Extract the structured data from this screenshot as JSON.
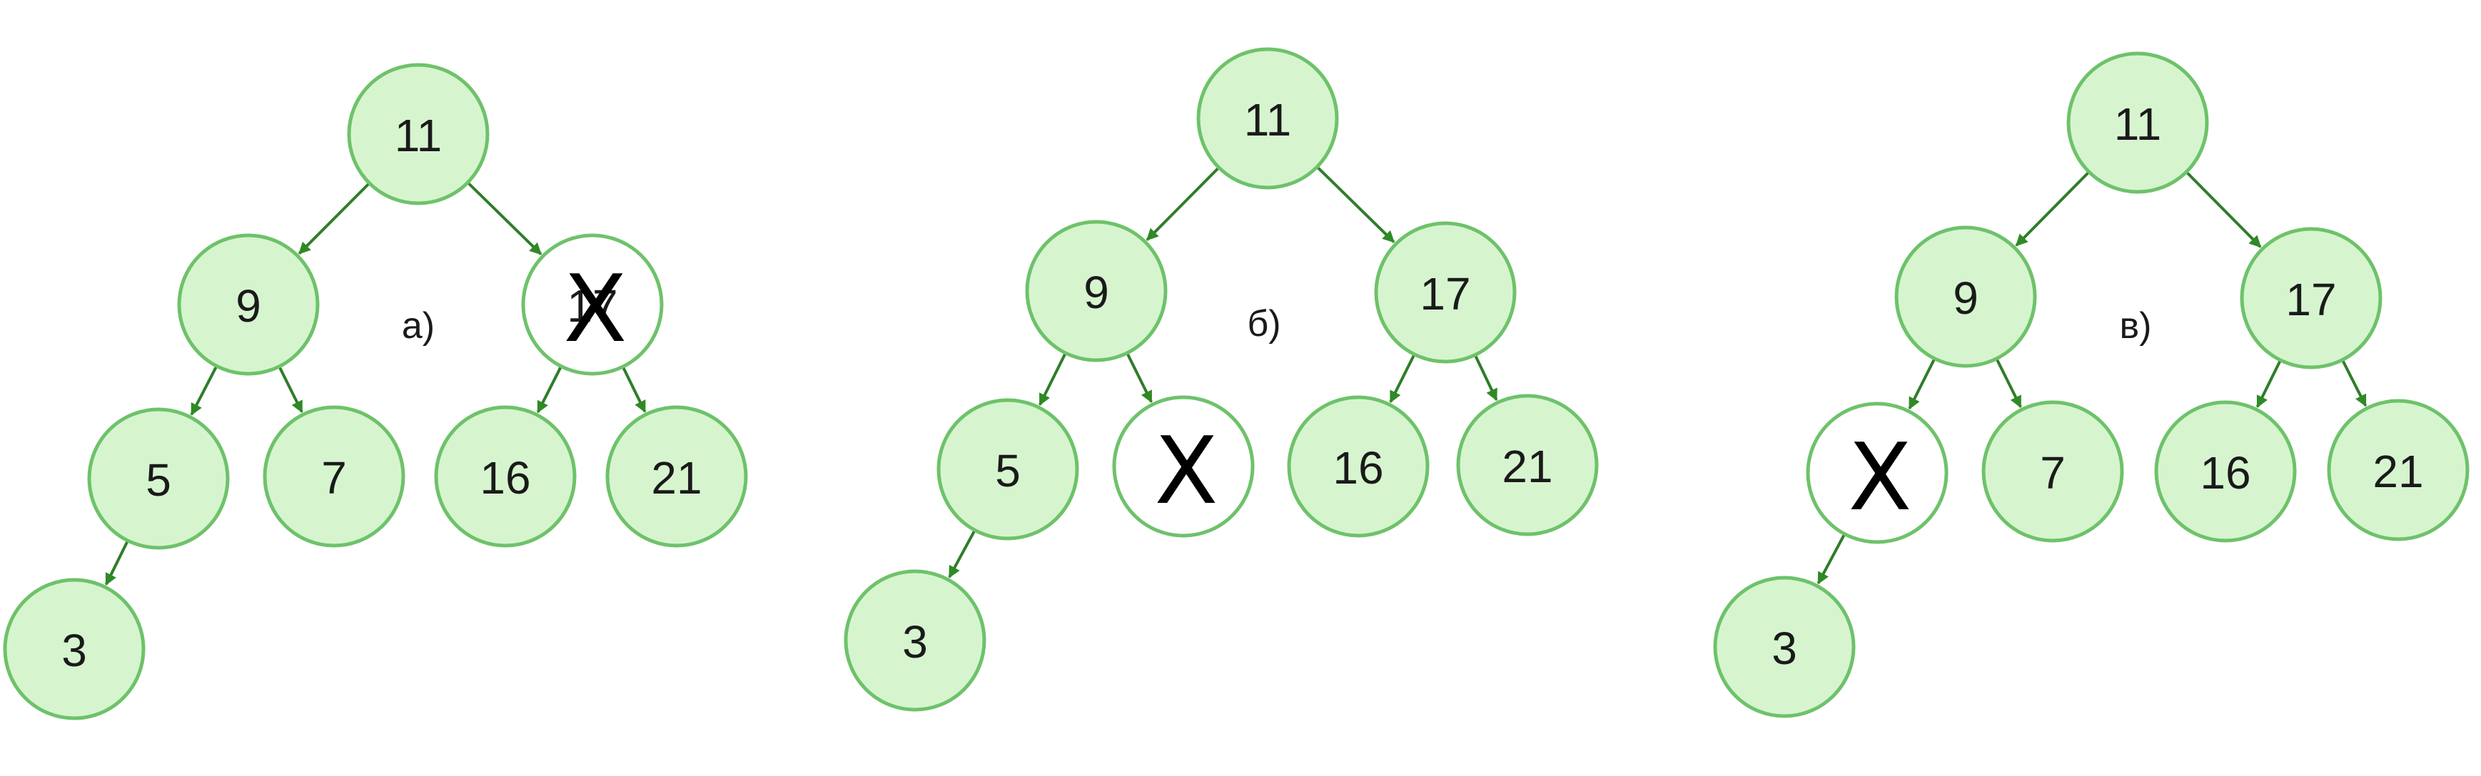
{
  "panels": [
    {
      "label": "а)",
      "removed_mark": "X",
      "nodes": [
        {
          "id": "n11",
          "value": "11",
          "removed": false
        },
        {
          "id": "n9",
          "value": "9",
          "removed": false
        },
        {
          "id": "n17",
          "value": "17",
          "removed": true
        },
        {
          "id": "n5",
          "value": "5",
          "removed": false
        },
        {
          "id": "n7",
          "value": "7",
          "removed": false
        },
        {
          "id": "n16",
          "value": "16",
          "removed": false
        },
        {
          "id": "n21",
          "value": "21",
          "removed": false
        },
        {
          "id": "n3",
          "value": "3",
          "removed": false
        }
      ],
      "edges": [
        [
          "n11",
          "n9"
        ],
        [
          "n11",
          "n17"
        ],
        [
          "n9",
          "n5"
        ],
        [
          "n9",
          "n7"
        ],
        [
          "n17",
          "n16"
        ],
        [
          "n17",
          "n21"
        ],
        [
          "n5",
          "n3"
        ]
      ]
    },
    {
      "label": "б)",
      "removed_mark": "X",
      "nodes": [
        {
          "id": "n11",
          "value": "11",
          "removed": false
        },
        {
          "id": "n9",
          "value": "9",
          "removed": false
        },
        {
          "id": "n17",
          "value": "17",
          "removed": false
        },
        {
          "id": "n5",
          "value": "5",
          "removed": false
        },
        {
          "id": "n7",
          "value": "",
          "removed": true
        },
        {
          "id": "n16",
          "value": "16",
          "removed": false
        },
        {
          "id": "n21",
          "value": "21",
          "removed": false
        },
        {
          "id": "n3",
          "value": "3",
          "removed": false
        }
      ],
      "edges": [
        [
          "n11",
          "n9"
        ],
        [
          "n11",
          "n17"
        ],
        [
          "n9",
          "n5"
        ],
        [
          "n9",
          "n7"
        ],
        [
          "n17",
          "n16"
        ],
        [
          "n17",
          "n21"
        ],
        [
          "n5",
          "n3"
        ]
      ]
    },
    {
      "label": "в)",
      "removed_mark": "X",
      "nodes": [
        {
          "id": "n11",
          "value": "11",
          "removed": false
        },
        {
          "id": "n9",
          "value": "9",
          "removed": false
        },
        {
          "id": "n17",
          "value": "17",
          "removed": false
        },
        {
          "id": "n5",
          "value": "",
          "removed": true
        },
        {
          "id": "n7",
          "value": "7",
          "removed": false
        },
        {
          "id": "n16",
          "value": "16",
          "removed": false
        },
        {
          "id": "n21",
          "value": "21",
          "removed": false
        },
        {
          "id": "n3",
          "value": "3",
          "removed": false
        }
      ],
      "edges": [
        [
          "n11",
          "n9"
        ],
        [
          "n11",
          "n17"
        ],
        [
          "n9",
          "n5"
        ],
        [
          "n9",
          "n7"
        ],
        [
          "n17",
          "n16"
        ],
        [
          "n17",
          "n21"
        ],
        [
          "n5",
          "n3"
        ]
      ]
    }
  ],
  "colors": {
    "node_fill": "#d6f5cf",
    "node_stroke": "#6ec26a",
    "edge": "#2f7d2a",
    "arrowhead": "#2f8a25",
    "text": "#1a1a1a",
    "cross": "#000000"
  }
}
